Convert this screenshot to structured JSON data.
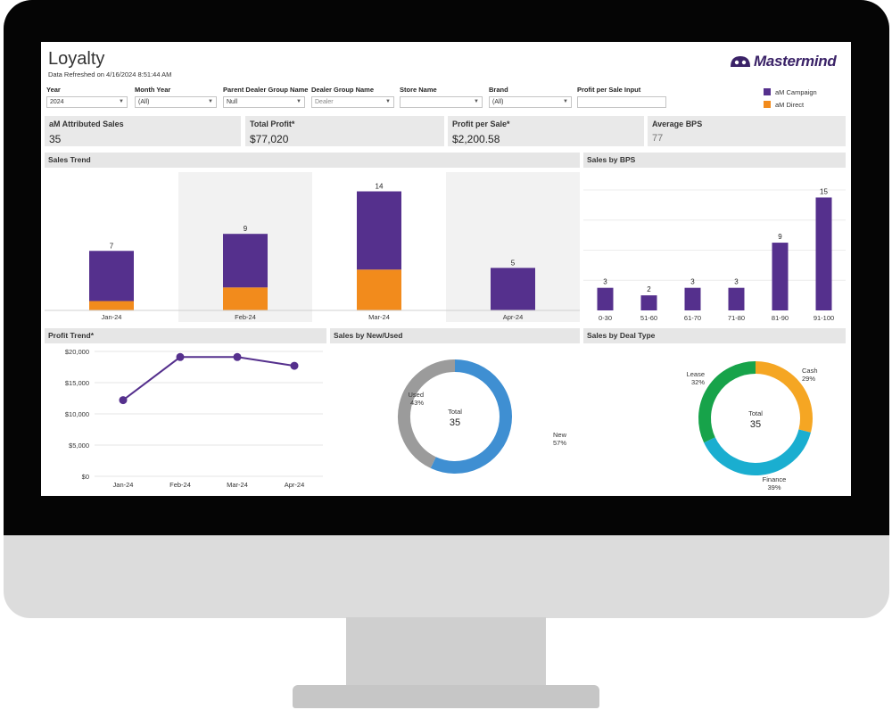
{
  "dashboard": {
    "title": "Loyalty",
    "refreshed": "Data Refreshed on 4/16/2024 8:51:44 AM",
    "logo_text": "Mastermind"
  },
  "filters": [
    {
      "label": "Year",
      "value": ""
    },
    {
      "label": "Month Year",
      "value": "(All)"
    },
    {
      "label": "Parent Dealer Group Name",
      "value": "Null"
    },
    {
      "label": "Dealer Group Name",
      "value": "Dealer"
    },
    {
      "label": "Store Name",
      "value": ""
    },
    {
      "label": "Brand",
      "value": "(All)"
    },
    {
      "label": "Profit per Sale Input",
      "value": ""
    }
  ],
  "year_value": "2024",
  "legend": [
    {
      "label": "aM Campaign",
      "color": "#55308d"
    },
    {
      "label": "aM Direct",
      "color": "#f28b1c"
    }
  ],
  "kpis": [
    {
      "label": "aM Attributed Sales",
      "value": "35"
    },
    {
      "label": "Total Profit*",
      "value": "$77,020"
    },
    {
      "label": "Profit per Sale*",
      "value": "$2,200.58"
    },
    {
      "label": "Average BPS",
      "value": "77"
    }
  ],
  "panels": {
    "sales_trend": "Sales Trend",
    "sales_by_bps": "Sales by BPS",
    "profit_trend": "Profit Trend*",
    "sales_by_new_used": "Sales by New/Used",
    "sales_by_deal_type": "Sales by Deal Type"
  },
  "chart_data": [
    {
      "id": "sales_trend",
      "type": "bar",
      "title": "Sales Trend",
      "stacked": true,
      "categories": [
        "Jan-24",
        "Feb-24",
        "Mar-24",
        "Apr-24"
      ],
      "totals": [
        7,
        9,
        14,
        5
      ],
      "series": [
        {
          "name": "aM Campaign",
          "color": "#55308d",
          "values": [
            5.9,
            6.3,
            9.2,
            5
          ]
        },
        {
          "name": "aM Direct",
          "color": "#f28b1c",
          "values": [
            1.1,
            2.7,
            4.8,
            0
          ]
        }
      ],
      "ylim": [
        0,
        15
      ]
    },
    {
      "id": "sales_by_bps",
      "type": "bar",
      "title": "Sales by BPS",
      "categories": [
        "0-30",
        "51-60",
        "61-70",
        "71-80",
        "81-90",
        "91-100"
      ],
      "values": [
        3,
        2,
        3,
        3,
        9,
        15
      ],
      "color": "#55308d",
      "ylim": [
        0,
        16
      ]
    },
    {
      "id": "profit_trend",
      "type": "line",
      "title": "Profit Trend*",
      "categories": [
        "Jan-24",
        "Feb-24",
        "Mar-24",
        "Apr-24"
      ],
      "values": [
        12200,
        19100,
        19100,
        17700
      ],
      "yticks": [
        "$0",
        "$5,000",
        "$10,000",
        "$15,000",
        "$20,000"
      ],
      "ylim": [
        0,
        20000
      ],
      "color": "#55308d",
      "grid": true
    },
    {
      "id": "sales_by_new_used",
      "type": "pie",
      "donut": true,
      "title": "Sales by New/Used",
      "center_label": "Total",
      "center_value": "35",
      "slices": [
        {
          "label": "New",
          "pct": "57%",
          "value": 57,
          "color": "#3f8fd2"
        },
        {
          "label": "Used",
          "pct": "43%",
          "value": 43,
          "color": "#9b9b9b"
        }
      ]
    },
    {
      "id": "sales_by_deal_type",
      "type": "pie",
      "donut": true,
      "title": "Sales by Deal Type",
      "center_label": "Total",
      "center_value": "35",
      "slices": [
        {
          "label": "Cash",
          "pct": "29%",
          "value": 29,
          "color": "#f5a623"
        },
        {
          "label": "Finance",
          "pct": "39%",
          "value": 39,
          "color": "#1aaed0"
        },
        {
          "label": "Lease",
          "pct": "32%",
          "value": 32,
          "color": "#17a34a"
        }
      ]
    }
  ]
}
